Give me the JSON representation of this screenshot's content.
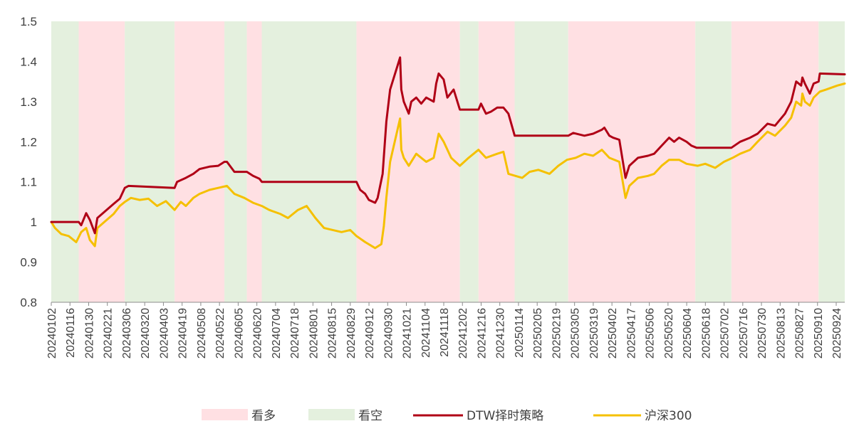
{
  "chart_data": {
    "type": "line",
    "ylim": [
      0.8,
      1.5
    ],
    "yticks": [
      "0.8",
      "0.9",
      "1",
      "1.1",
      "1.2",
      "1.3",
      "1.4",
      "1.5"
    ],
    "ytick_values": [
      0.8,
      0.9,
      1.0,
      1.1,
      1.2,
      1.3,
      1.4,
      1.5
    ],
    "xticks": [
      "20240102",
      "20240116",
      "20240130",
      "20240221",
      "20240306",
      "20240320",
      "20240403",
      "20240419",
      "20240508",
      "20240522",
      "20240605",
      "20240620",
      "20240704",
      "20240718",
      "20240801",
      "20240815",
      "20240829",
      "20240912",
      "20240930",
      "20241021",
      "20241104",
      "20241118",
      "20241202",
      "20241216",
      "20241230",
      "20250114",
      "20250205",
      "20250219",
      "20250305",
      "20250319",
      "20250402",
      "20250417",
      "20250506",
      "20250520",
      "20250604",
      "20250618",
      "20250702",
      "20250716",
      "20250730",
      "20250813",
      "20250827",
      "20250910",
      "20250924"
    ],
    "x_start": "20240102",
    "x_end": "20250930",
    "grid": false,
    "legend_position": "bottom",
    "regimes": [
      {
        "start": "20240102",
        "end": "20240124",
        "signal": "bear"
      },
      {
        "start": "20240124",
        "end": "20240301",
        "signal": "bull"
      },
      {
        "start": "20240301",
        "end": "20240410",
        "signal": "bear"
      },
      {
        "start": "20240410",
        "end": "20240520",
        "signal": "bull"
      },
      {
        "start": "20240520",
        "end": "20240607",
        "signal": "bear"
      },
      {
        "start": "20240607",
        "end": "20240619",
        "signal": "bull"
      },
      {
        "start": "20240619",
        "end": "20240903",
        "signal": "bear"
      },
      {
        "start": "20240903",
        "end": "20241125",
        "signal": "bull"
      },
      {
        "start": "20241125",
        "end": "20241210",
        "signal": "bear"
      },
      {
        "start": "20241210",
        "end": "20250108",
        "signal": "bull"
      },
      {
        "start": "20250108",
        "end": "20250220",
        "signal": "bear"
      },
      {
        "start": "20250220",
        "end": "20250602",
        "signal": "bull"
      },
      {
        "start": "20250602",
        "end": "20250701",
        "signal": "bear"
      },
      {
        "start": "20250701",
        "end": "20250909",
        "signal": "bull"
      },
      {
        "start": "20250909",
        "end": "20250930",
        "signal": "bear"
      }
    ],
    "legend": {
      "bull": {
        "label": "看多",
        "color": "#ffe0e3"
      },
      "bear": {
        "label": "看空",
        "color": "#e4f0de"
      }
    },
    "series": [
      {
        "name": "DTW择时策略",
        "color": "#b00016",
        "points": [
          [
            "20240102",
            1.0
          ],
          [
            "20240124",
            1.0
          ],
          [
            "20240126",
            0.992
          ],
          [
            "20240130",
            1.022
          ],
          [
            "20240202",
            1.005
          ],
          [
            "20240206",
            0.972
          ],
          [
            "20240208",
            1.01
          ],
          [
            "20240221",
            1.045
          ],
          [
            "20240226",
            1.058
          ],
          [
            "20240301",
            1.085
          ],
          [
            "20240304",
            1.09
          ],
          [
            "20240410",
            1.085
          ],
          [
            "20240412",
            1.1
          ],
          [
            "20240419",
            1.11
          ],
          [
            "20240425",
            1.12
          ],
          [
            "20240430",
            1.132
          ],
          [
            "20240508",
            1.138
          ],
          [
            "20240515",
            1.14
          ],
          [
            "20240520",
            1.15
          ],
          [
            "20240522",
            1.15
          ],
          [
            "20240528",
            1.125
          ],
          [
            "20240607",
            1.125
          ],
          [
            "20240612",
            1.115
          ],
          [
            "20240617",
            1.108
          ],
          [
            "20240619",
            1.1
          ],
          [
            "20240903",
            1.1
          ],
          [
            "20240906",
            1.08
          ],
          [
            "20240910",
            1.07
          ],
          [
            "20240913",
            1.055
          ],
          [
            "20240918",
            1.048
          ],
          [
            "20240920",
            1.06
          ],
          [
            "20240924",
            1.12
          ],
          [
            "20240927",
            1.25
          ],
          [
            "20240930",
            1.33
          ],
          [
            "20241008",
            1.41
          ],
          [
            "20241009",
            1.33
          ],
          [
            "20241011",
            1.3
          ],
          [
            "20241015",
            1.27
          ],
          [
            "20241017",
            1.3
          ],
          [
            "20241021",
            1.31
          ],
          [
            "20241025",
            1.295
          ],
          [
            "20241029",
            1.31
          ],
          [
            "20241104",
            1.3
          ],
          [
            "20241106",
            1.345
          ],
          [
            "20241108",
            1.37
          ],
          [
            "20241112",
            1.355
          ],
          [
            "20241115",
            1.31
          ],
          [
            "20241120",
            1.33
          ],
          [
            "20241125",
            1.28
          ],
          [
            "20241210",
            1.28
          ],
          [
            "20241212",
            1.295
          ],
          [
            "20241216",
            1.27
          ],
          [
            "20241220",
            1.275
          ],
          [
            "20241225",
            1.285
          ],
          [
            "20241230",
            1.285
          ],
          [
            "20250103",
            1.27
          ],
          [
            "20250108",
            1.215
          ],
          [
            "20250220",
            1.215
          ],
          [
            "20250224",
            1.222
          ],
          [
            "20250305",
            1.215
          ],
          [
            "20250312",
            1.22
          ],
          [
            "20250319",
            1.23
          ],
          [
            "20250321",
            1.235
          ],
          [
            "20250325",
            1.215
          ],
          [
            "20250328",
            1.21
          ],
          [
            "20250402",
            1.205
          ],
          [
            "20250407",
            1.11
          ],
          [
            "20250410",
            1.14
          ],
          [
            "20250417",
            1.16
          ],
          [
            "20250425",
            1.165
          ],
          [
            "20250430",
            1.17
          ],
          [
            "20250506",
            1.19
          ],
          [
            "20250512",
            1.21
          ],
          [
            "20250516",
            1.2
          ],
          [
            "20250520",
            1.21
          ],
          [
            "20250526",
            1.2
          ],
          [
            "20250530",
            1.19
          ],
          [
            "20250603",
            1.185
          ],
          [
            "20250701",
            1.185
          ],
          [
            "20250708",
            1.2
          ],
          [
            "20250716",
            1.21
          ],
          [
            "20250722",
            1.22
          ],
          [
            "20250730",
            1.245
          ],
          [
            "20250805",
            1.24
          ],
          [
            "20250813",
            1.27
          ],
          [
            "20250818",
            1.3
          ],
          [
            "20250822",
            1.35
          ],
          [
            "20250826",
            1.34
          ],
          [
            "20250827",
            1.36
          ],
          [
            "20250829",
            1.345
          ],
          [
            "20250902",
            1.32
          ],
          [
            "20250905",
            1.345
          ],
          [
            "20250909",
            1.35
          ],
          [
            "20250910",
            1.37
          ],
          [
            "20250930",
            1.368
          ]
        ]
      },
      {
        "name": "沪深300",
        "color": "#f5c000",
        "points": [
          [
            "20240102",
            1.0
          ],
          [
            "20240105",
            0.985
          ],
          [
            "20240110",
            0.97
          ],
          [
            "20240116",
            0.965
          ],
          [
            "20240122",
            0.95
          ],
          [
            "20240126",
            0.975
          ],
          [
            "20240130",
            0.985
          ],
          [
            "20240202",
            0.955
          ],
          [
            "20240206",
            0.94
          ],
          [
            "20240208",
            0.985
          ],
          [
            "20240221",
            1.02
          ],
          [
            "20240226",
            1.04
          ],
          [
            "20240301",
            1.05
          ],
          [
            "20240306",
            1.06
          ],
          [
            "20240313",
            1.055
          ],
          [
            "20240320",
            1.058
          ],
          [
            "20240327",
            1.04
          ],
          [
            "20240403",
            1.052
          ],
          [
            "20240410",
            1.03
          ],
          [
            "20240415",
            1.05
          ],
          [
            "20240419",
            1.04
          ],
          [
            "20240425",
            1.06
          ],
          [
            "20240430",
            1.07
          ],
          [
            "20240508",
            1.08
          ],
          [
            "20240515",
            1.085
          ],
          [
            "20240522",
            1.09
          ],
          [
            "20240528",
            1.07
          ],
          [
            "20240605",
            1.06
          ],
          [
            "20240612",
            1.048
          ],
          [
            "20240619",
            1.04
          ],
          [
            "20240625",
            1.03
          ],
          [
            "20240704",
            1.02
          ],
          [
            "20240710",
            1.01
          ],
          [
            "20240718",
            1.03
          ],
          [
            "20240725",
            1.04
          ],
          [
            "20240801",
            1.01
          ],
          [
            "20240808",
            0.985
          ],
          [
            "20240815",
            0.98
          ],
          [
            "20240822",
            0.975
          ],
          [
            "20240829",
            0.98
          ],
          [
            "20240903",
            0.965
          ],
          [
            "20240910",
            0.95
          ],
          [
            "20240918",
            0.935
          ],
          [
            "20240923",
            0.945
          ],
          [
            "20240925",
            0.99
          ],
          [
            "20240927",
            1.06
          ],
          [
            "20240930",
            1.15
          ],
          [
            "20241008",
            1.258
          ],
          [
            "20241009",
            1.18
          ],
          [
            "20241011",
            1.16
          ],
          [
            "20241015",
            1.14
          ],
          [
            "20241021",
            1.17
          ],
          [
            "20241025",
            1.16
          ],
          [
            "20241029",
            1.15
          ],
          [
            "20241104",
            1.16
          ],
          [
            "20241108",
            1.22
          ],
          [
            "20241112",
            1.2
          ],
          [
            "20241118",
            1.16
          ],
          [
            "20241125",
            1.14
          ],
          [
            "20241202",
            1.16
          ],
          [
            "20241210",
            1.18
          ],
          [
            "20241216",
            1.16
          ],
          [
            "20241225",
            1.17
          ],
          [
            "20241230",
            1.175
          ],
          [
            "20250103",
            1.12
          ],
          [
            "20250114",
            1.11
          ],
          [
            "20250120",
            1.125
          ],
          [
            "20250127",
            1.13
          ],
          [
            "20250205",
            1.12
          ],
          [
            "20250212",
            1.14
          ],
          [
            "20250219",
            1.155
          ],
          [
            "20250226",
            1.16
          ],
          [
            "20250305",
            1.17
          ],
          [
            "20250312",
            1.165
          ],
          [
            "20250319",
            1.18
          ],
          [
            "20250325",
            1.16
          ],
          [
            "20250402",
            1.15
          ],
          [
            "20250407",
            1.06
          ],
          [
            "20250410",
            1.09
          ],
          [
            "20250417",
            1.11
          ],
          [
            "20250425",
            1.115
          ],
          [
            "20250430",
            1.12
          ],
          [
            "20250506",
            1.14
          ],
          [
            "20250512",
            1.155
          ],
          [
            "20250520",
            1.155
          ],
          [
            "20250526",
            1.145
          ],
          [
            "20250604",
            1.14
          ],
          [
            "20250610",
            1.145
          ],
          [
            "20250618",
            1.135
          ],
          [
            "20250625",
            1.15
          ],
          [
            "20250702",
            1.16
          ],
          [
            "20250708",
            1.17
          ],
          [
            "20250716",
            1.18
          ],
          [
            "20250722",
            1.2
          ],
          [
            "20250730",
            1.225
          ],
          [
            "20250805",
            1.215
          ],
          [
            "20250813",
            1.24
          ],
          [
            "20250818",
            1.26
          ],
          [
            "20250822",
            1.3
          ],
          [
            "20250826",
            1.29
          ],
          [
            "20250827",
            1.32
          ],
          [
            "20250829",
            1.3
          ],
          [
            "20250902",
            1.29
          ],
          [
            "20250905",
            1.31
          ],
          [
            "20250910",
            1.325
          ],
          [
            "20250915",
            1.33
          ],
          [
            "20250924",
            1.34
          ],
          [
            "20250930",
            1.345
          ]
        ]
      }
    ]
  }
}
